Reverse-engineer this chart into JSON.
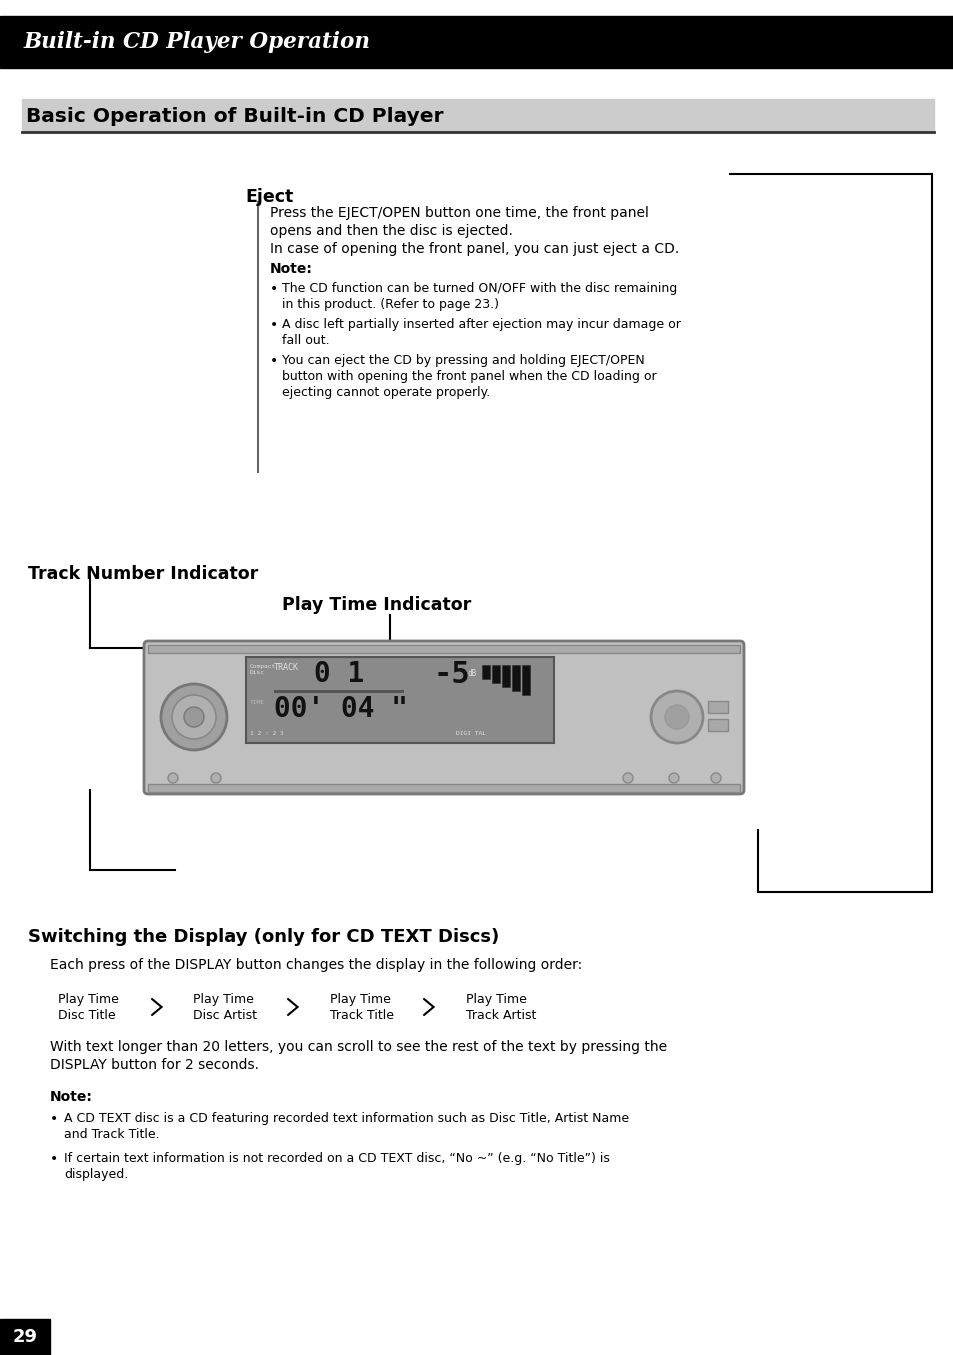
{
  "page_bg": "#ffffff",
  "header_bg": "#000000",
  "header_text": "Built-in CD Player Operation",
  "header_text_color": "#ffffff",
  "section_title": "Basic Operation of Built-in CD Player",
  "section_bg": "#cccccc",
  "page_number": "29",
  "eject_title": "Eject",
  "eject_body_lines": [
    "Press the EJECT/OPEN button one time, the front panel",
    "opens and then the disc is ejected.",
    "In case of opening the front panel, you can just eject a CD."
  ],
  "eject_note_title": "Note:",
  "eject_note_bullets": [
    [
      "The CD function can be turned ON/OFF with the disc remaining",
      "in this product. (Refer to page 23.)"
    ],
    [
      "A disc left partially inserted after ejection may incur damage or",
      "fall out."
    ],
    [
      "You can eject the CD by pressing and holding EJECT/OPEN",
      "button with opening the front panel when the CD loading or",
      "ejecting cannot operate properly."
    ]
  ],
  "track_label": "Track Number Indicator",
  "playtime_label": "Play Time Indicator",
  "switch_title": "Switching the Display (only for CD TEXT Discs)",
  "switch_body": "Each press of the DISPLAY button changes the display in the following order:",
  "display_items": [
    [
      "Play Time",
      "Disc Title"
    ],
    [
      "Play Time",
      "Disc Artist"
    ],
    [
      "Play Time",
      "Track Title"
    ],
    [
      "Play Time",
      "Track Artist"
    ]
  ],
  "scroll_body_lines": [
    "With text longer than 20 letters, you can scroll to see the rest of the text by pressing the",
    "DISPLAY button for 2 seconds."
  ],
  "note2_title": "Note:",
  "note2_bullets": [
    [
      "A CD TEXT disc is a CD featuring recorded text information such as Disc Title, Artist Name",
      "and Track Title."
    ],
    [
      "If certain text information is not recorded on a CD TEXT disc, “No ~” (e.g. “No Title”) is",
      "displayed."
    ]
  ]
}
